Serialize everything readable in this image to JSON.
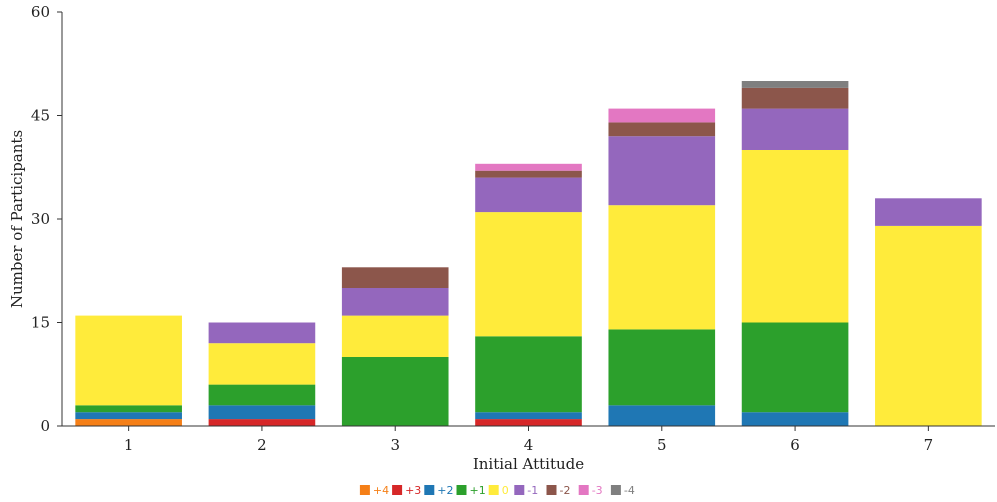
{
  "chart_data": {
    "type": "bar",
    "stacked": true,
    "title": "",
    "xlabel": "Initial Attitude",
    "ylabel": "Number of Participants",
    "ylim": [
      0,
      60
    ],
    "yticks": [
      0,
      15,
      30,
      45,
      60
    ],
    "grid": false,
    "legend_position": "bottom-center",
    "categories": [
      "1",
      "2",
      "3",
      "4",
      "5",
      "6",
      "7"
    ],
    "series": [
      {
        "name": "+4",
        "color": "#f57f17",
        "values": [
          1,
          0,
          0,
          0,
          0,
          0,
          0
        ]
      },
      {
        "name": "+3",
        "color": "#d62728",
        "values": [
          0,
          1,
          0,
          1,
          0,
          0,
          0
        ]
      },
      {
        "name": "+2",
        "color": "#1f77b4",
        "values": [
          1,
          2,
          0,
          1,
          3,
          2,
          0
        ]
      },
      {
        "name": "+1",
        "color": "#2ca02c",
        "values": [
          1,
          3,
          10,
          11,
          11,
          13,
          0
        ]
      },
      {
        "name": "0",
        "color": "#ffeb3b",
        "values": [
          13,
          6,
          6,
          18,
          18,
          25,
          29
        ]
      },
      {
        "name": "-1",
        "color": "#9467bd",
        "values": [
          0,
          3,
          4,
          5,
          10,
          6,
          4
        ]
      },
      {
        "name": "-2",
        "color": "#8c564b",
        "values": [
          0,
          0,
          3,
          1,
          2,
          3,
          0
        ]
      },
      {
        "name": "-3",
        "color": "#e377c2",
        "values": [
          0,
          0,
          0,
          1,
          2,
          0,
          0
        ]
      },
      {
        "name": "-4",
        "color": "#7f7f7f",
        "values": [
          0,
          0,
          0,
          0,
          0,
          1,
          0
        ]
      }
    ]
  }
}
